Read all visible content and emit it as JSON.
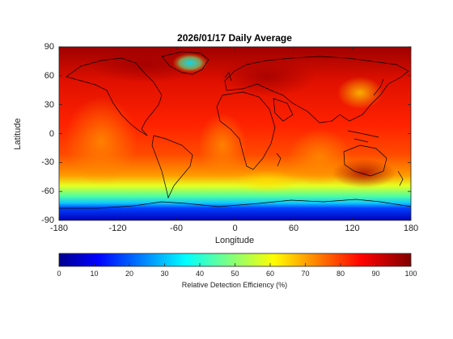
{
  "map": {
    "title": "2026/01/17 Daily Average",
    "xlabel": "Longitude",
    "ylabel": "Latitude",
    "xlim": [
      -180,
      180
    ],
    "ylim": [
      -90,
      90
    ],
    "xticks": [
      "-180",
      "-120",
      "-60",
      "0",
      "60",
      "120",
      "180"
    ],
    "yticks": [
      "90",
      "60",
      "30",
      "0",
      "-30",
      "-60",
      "-90"
    ]
  },
  "colorbar": {
    "label": "Relative Detection Efficiency (%)",
    "range": [
      0,
      100
    ],
    "ticks": [
      "0",
      "10",
      "20",
      "30",
      "40",
      "50",
      "60",
      "70",
      "80",
      "90",
      "100"
    ],
    "colormap": "jet"
  },
  "colors": {
    "high": "#b00000",
    "mid_high": "#ff2a00",
    "mid": "#ffd000",
    "low_mid": "#40e0ff",
    "low": "#0000c0",
    "coastline": "#000000"
  }
}
